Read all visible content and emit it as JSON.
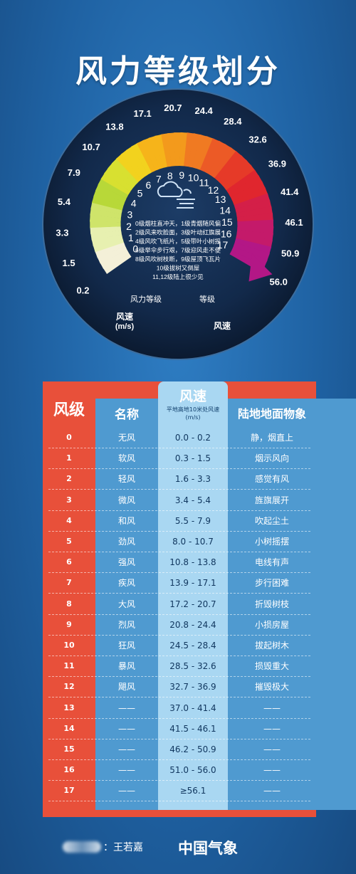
{
  "title": "风力等级划分",
  "gauge": {
    "levels": [
      "0",
      "1",
      "2",
      "3",
      "4",
      "5",
      "6",
      "7",
      "8",
      "9",
      "10",
      "11",
      "12",
      "13",
      "14",
      "15",
      "16",
      "17"
    ],
    "speeds": [
      "0.2",
      "1.5",
      "3.3",
      "5.4",
      "7.9",
      "10.7",
      "13.8",
      "17.1",
      "20.7",
      "24.4",
      "28.4",
      "32.6",
      "36.9",
      "41.4",
      "46.1",
      "50.9",
      "56.0"
    ],
    "label_force_level": "风力等级",
    "label_wind_speed": "风速",
    "label_unit": "(m/s)",
    "label_level": "等级",
    "label_speed_right": "风速",
    "weather_icon": "cloud-wind-icon",
    "phenomena_lines": [
      "0级烟柱直冲天，1级青烟随风偏",
      "2级风来吹脸面，3级叶动红旗展",
      "4级风吹飞纸片，5级带叶小树摇",
      "6级举伞步行艰，7级迎风走不便",
      "8级风吹树枝断，9级屋顶飞瓦片",
      "10级拔树又倒屋",
      "11,12级陆上很少见"
    ]
  },
  "table": {
    "header_level": "风级",
    "header_name": "名称",
    "header_speed": "风速",
    "header_speed_sub": "平地高地10米处风速",
    "header_speed_unit": "(m/s)",
    "header_phenomena": "陆地地面物象",
    "rows": [
      {
        "level": "0",
        "name": "无风",
        "speed": "0.0 - 0.2",
        "phenomena": "静，烟直上"
      },
      {
        "level": "1",
        "name": "软风",
        "speed": "0.3 - 1.5",
        "phenomena": "烟示风向"
      },
      {
        "level": "2",
        "name": "轻风",
        "speed": "1.6 - 3.3",
        "phenomena": "感觉有风"
      },
      {
        "level": "3",
        "name": "微风",
        "speed": "3.4 - 5.4",
        "phenomena": "旌旗展开"
      },
      {
        "level": "4",
        "name": "和风",
        "speed": "5.5 - 7.9",
        "phenomena": "吹起尘土"
      },
      {
        "level": "5",
        "name": "劲风",
        "speed": "8.0 - 10.7",
        "phenomena": "小树摇摆"
      },
      {
        "level": "6",
        "name": "强风",
        "speed": "10.8 - 13.8",
        "phenomena": "电线有声"
      },
      {
        "level": "7",
        "name": "疾风",
        "speed": "13.9 - 17.1",
        "phenomena": "步行困难"
      },
      {
        "level": "8",
        "name": "大风",
        "speed": "17.2 - 20.7",
        "phenomena": "折毁树枝"
      },
      {
        "level": "9",
        "name": "烈风",
        "speed": "20.8 - 24.4",
        "phenomena": "小损房屋"
      },
      {
        "level": "10",
        "name": "狂风",
        "speed": "24.5 - 28.4",
        "phenomena": "拔起树木"
      },
      {
        "level": "11",
        "name": "暴风",
        "speed": "28.5 - 32.6",
        "phenomena": "损毁重大"
      },
      {
        "level": "12",
        "name": "飓风",
        "speed": "32.7 - 36.9",
        "phenomena": "摧毁极大"
      },
      {
        "level": "13",
        "name": "——",
        "speed": "37.0 - 41.4",
        "phenomena": "——"
      },
      {
        "level": "14",
        "name": "——",
        "speed": "41.5 - 46.1",
        "phenomena": "——"
      },
      {
        "level": "15",
        "name": "——",
        "speed": "46.2 - 50.9",
        "phenomena": "——"
      },
      {
        "level": "16",
        "name": "——",
        "speed": "51.0 - 56.0",
        "phenomena": "——"
      },
      {
        "level": "17",
        "name": "——",
        "speed": "≥56.1",
        "phenomena": "——"
      }
    ]
  },
  "footer": {
    "credit": "：王若嘉",
    "brand": "中国气象"
  },
  "colors": {
    "background": "#1f62a3",
    "level_column": "#e8503a",
    "table_body": "#4f9ad0",
    "speed_column": "#a9d7f2",
    "gauge_dark": "#0e1f38"
  }
}
